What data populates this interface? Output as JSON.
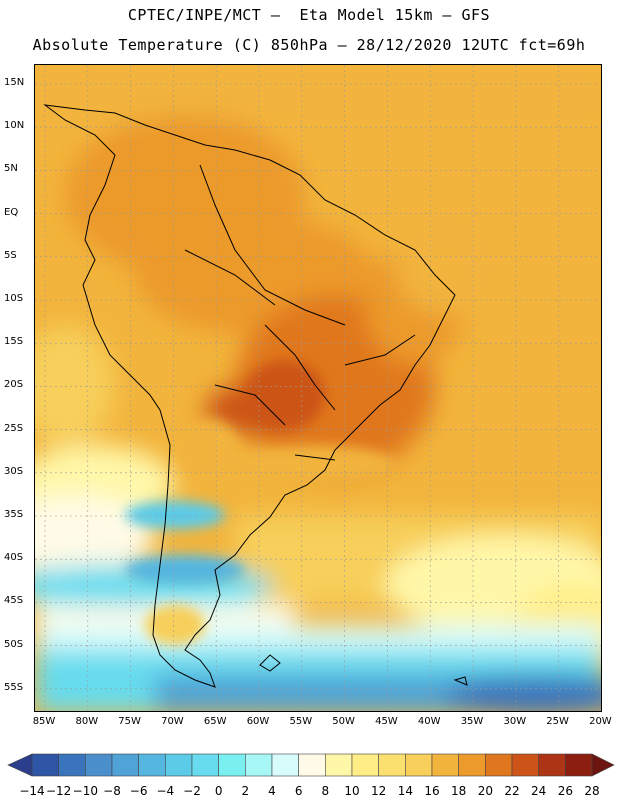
{
  "header": {
    "title_line1": "CPTEC/INPE/MCT –  Eta Model 15km – GFS",
    "title_line2": "Absolute Temperature (C) 850hPa – 28/12/2020 12UTC fct=69h"
  },
  "map": {
    "region": "South America",
    "lat_labels": [
      "15N",
      "10N",
      "5N",
      "EQ",
      "5S",
      "10S",
      "15S",
      "20S",
      "25S",
      "30S",
      "35S",
      "40S",
      "45S",
      "50S",
      "55S"
    ],
    "lon_labels": [
      "85W",
      "80W",
      "75W",
      "70W",
      "65W",
      "60W",
      "55W",
      "50W",
      "45W",
      "40W",
      "35W",
      "30W",
      "25W",
      "20W"
    ]
  },
  "colorbar": {
    "labels": [
      "-14",
      "-12",
      "-10",
      "-8",
      "-6",
      "-4",
      "-2",
      "0",
      "2",
      "4",
      "6",
      "8",
      "10",
      "12",
      "14",
      "16",
      "18",
      "20",
      "22",
      "24",
      "26",
      "28"
    ],
    "colors": [
      "#2a3e8c",
      "#2f56a6",
      "#3a74bd",
      "#4b8fcc",
      "#4fa3d6",
      "#55b6e0",
      "#5ccbe8",
      "#66dcee",
      "#79efef",
      "#a8f7f7",
      "#d8fbfb",
      "#fffbe6",
      "#fff7a8",
      "#ffee88",
      "#fbe070",
      "#f7cf5a",
      "#f2b43c",
      "#ec9a2b",
      "#e0771e",
      "#cc5418",
      "#ad3414",
      "#8c1e10",
      "#6b1410"
    ]
  }
}
